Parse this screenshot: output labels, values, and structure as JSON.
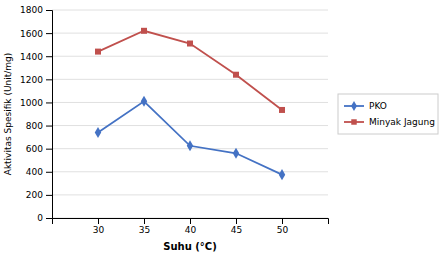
{
  "chart_data": {
    "type": "line",
    "x": [
      30,
      35,
      40,
      45,
      50
    ],
    "xlabel": "Suhu (°C)",
    "ylabel": "Aktivitas Spesifik (Unit/mg)",
    "series": [
      {
        "name": "PKO",
        "color": "#4472C4",
        "marker": "diamond",
        "values": [
          740,
          1010,
          625,
          560,
          375
        ]
      },
      {
        "name": "Minyak Jagung",
        "color": "#C0504D",
        "marker": "square",
        "values": [
          1440,
          1620,
          1510,
          1240,
          935
        ]
      }
    ],
    "xlim": [
      25,
      55
    ],
    "xticks": [
      30,
      35,
      40,
      45,
      50
    ],
    "ylim": [
      0,
      1800
    ],
    "yticks": [
      0,
      200,
      400,
      600,
      800,
      1000,
      1200,
      1400,
      1600,
      1800
    ],
    "grid": true,
    "legend": "right"
  }
}
